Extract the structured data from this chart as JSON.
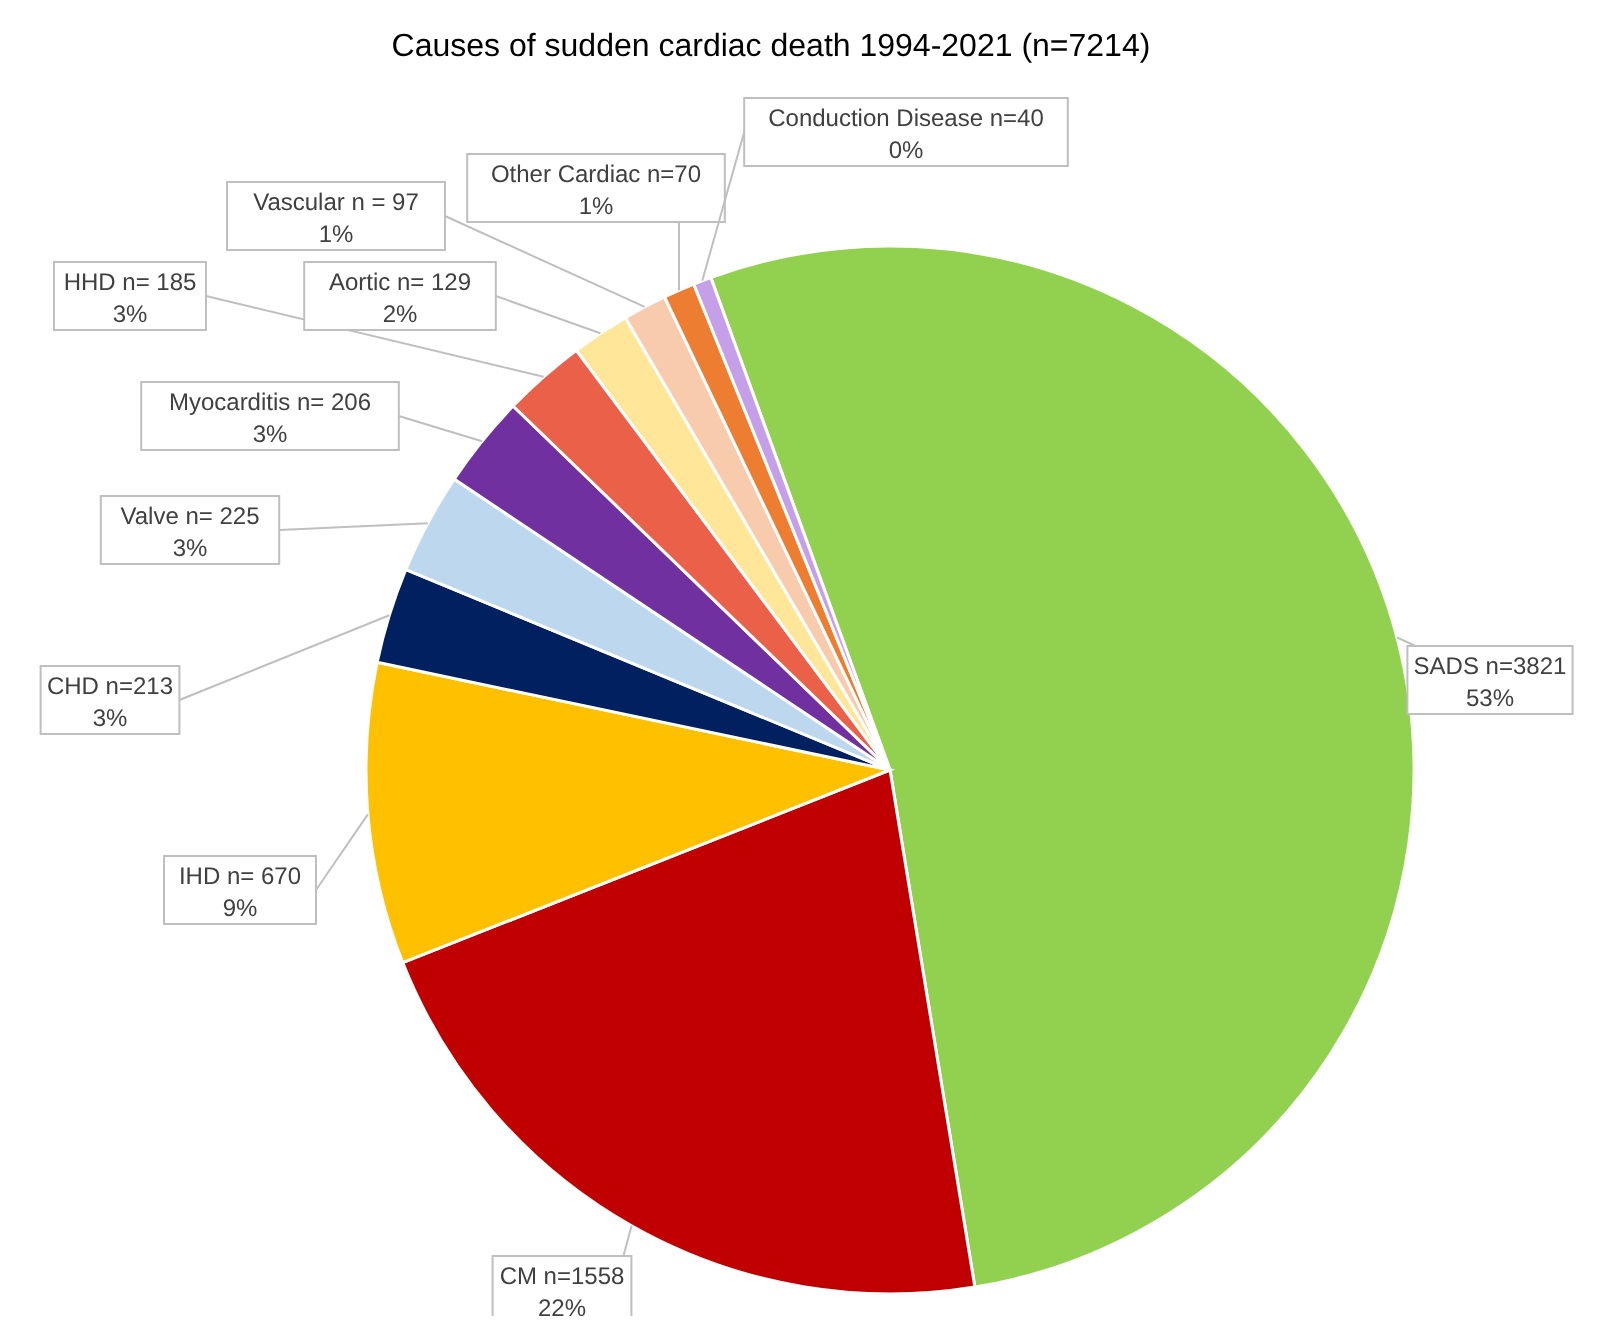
{
  "chart_data": {
    "type": "pie",
    "title": "Causes of sudden cardiac death 1994-2021 (n=7214)",
    "categories": [
      "SADS",
      "CM",
      "IHD",
      "CHD",
      "Valve",
      "Myocarditis",
      "HHD",
      "Aortic",
      "Vascular",
      "Other Cardiac",
      "Conduction Disease"
    ],
    "values": [
      3821,
      1558,
      670,
      213,
      225,
      206,
      185,
      129,
      97,
      70,
      40
    ],
    "value_labels": [
      "n=3821\n53%",
      "n=1558\n22%",
      "n= 670\n9%",
      "n=213\n3%",
      "n= 225\n3%",
      "n= 206\n3%",
      "n= 185\n3%",
      "n= 129\n2%",
      "n = 97\n1%",
      "n=70\n1%",
      "n=40\n0%"
    ],
    "colors": [
      "#92d050",
      "#c00000",
      "#ffc000",
      "#002060",
      "#bdd7ee",
      "#7030a0",
      "#ea6048",
      "#ffe699",
      "#f8cbad",
      "#ed7d31",
      "#c5a0e8"
    ],
    "legend": false
  }
}
